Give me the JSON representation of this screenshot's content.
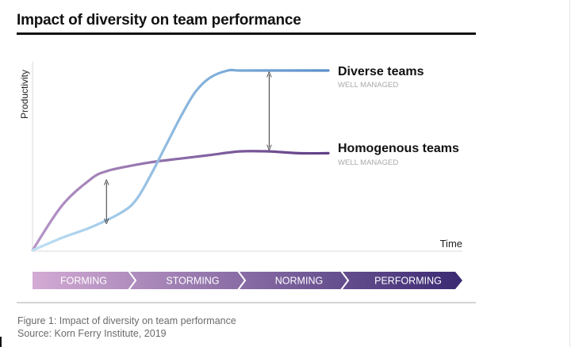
{
  "title": "Impact of diversity on team performance",
  "caption": {
    "figure": "Figure 1: Impact of diversity on team performance",
    "source": "Source: Korn Ferry Institute, 2019"
  },
  "colors": {
    "diverse": "#5b8ec9",
    "diverse_light": "#bde0f3",
    "homogenous": "#5f3f86",
    "homogenous_light": "#b695c7",
    "stage_start": "#d3abd4",
    "stage_end": "#3a2a72"
  },
  "chart_data": {
    "type": "line",
    "xlabel": "Time",
    "ylabel": "Productivity",
    "xlim": [
      0,
      100
    ],
    "ylim": [
      0,
      100
    ],
    "grid": false,
    "series": [
      {
        "name": "Diverse teams",
        "sublabel": "WELL MANAGED",
        "x": [
          0,
          10,
          20,
          30,
          35,
          40,
          45,
          50,
          55,
          60,
          66,
          70,
          80,
          90,
          100
        ],
        "y": [
          0,
          7,
          13,
          21,
          28,
          42,
          58,
          74,
          88,
          96,
          100,
          100,
          100,
          100,
          100
        ]
      },
      {
        "name": "Homogenous teams",
        "sublabel": "WELL MANAGED",
        "x": [
          0,
          10,
          20,
          25,
          30,
          40,
          50,
          60,
          70,
          80,
          90,
          100
        ],
        "y": [
          0,
          25,
          40,
          44,
          46,
          49,
          51,
          53,
          55,
          55,
          54,
          54
        ]
      }
    ],
    "annotations": [
      {
        "type": "double-arrow",
        "x": 25,
        "y_from": 14,
        "y_to": 40
      },
      {
        "type": "double-arrow",
        "x": 80,
        "y_from": 55,
        "y_to": 100
      }
    ],
    "stages": [
      "FORMING",
      "STORMING",
      "NORMING",
      "PERFORMING"
    ]
  }
}
